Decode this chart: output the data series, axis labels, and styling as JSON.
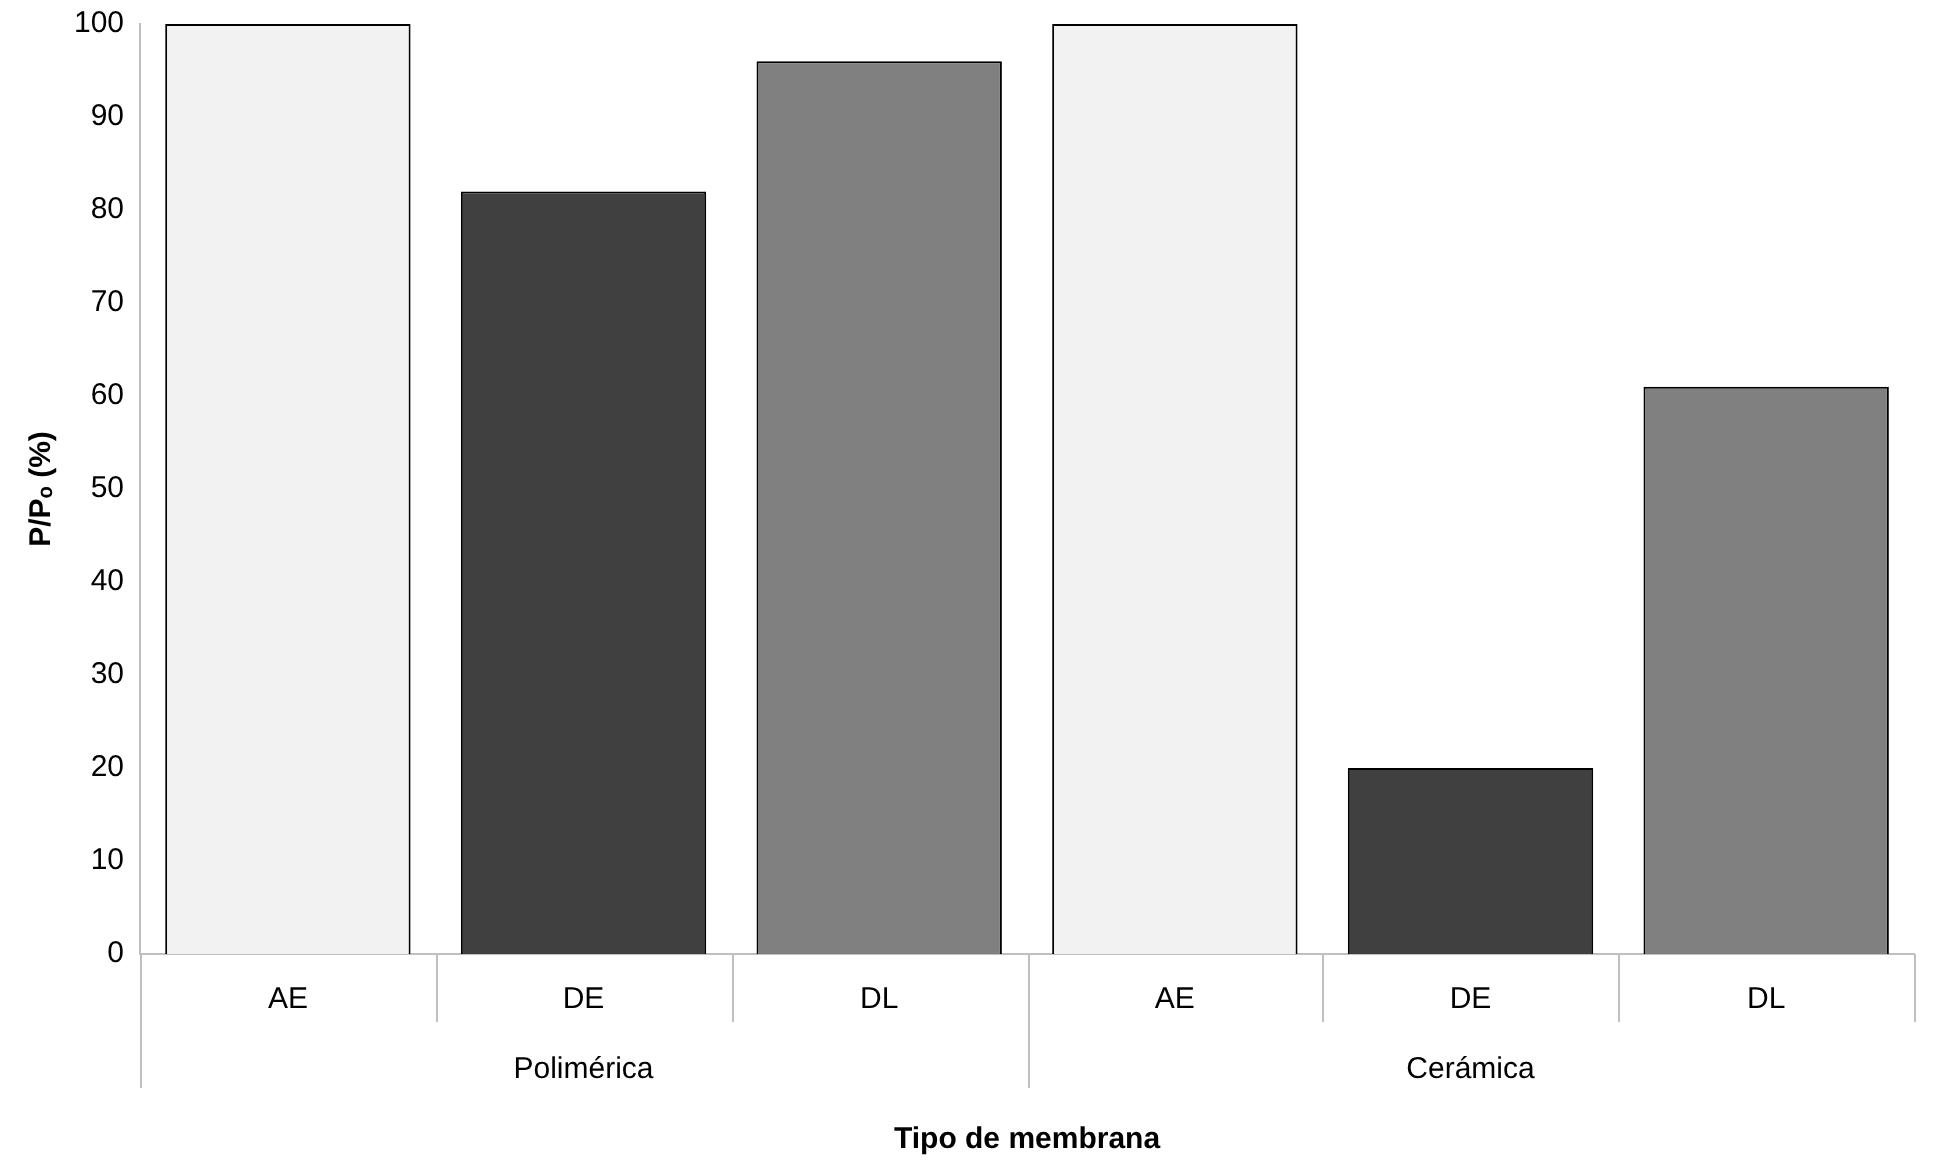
{
  "chart_data": {
    "type": "bar",
    "xlabel": "Tipo de membrana",
    "ylabel": "P/Pₒ (%)",
    "categories": [
      "AE",
      "DE",
      "DL",
      "AE",
      "DE",
      "DL"
    ],
    "values": [
      100,
      82,
      96,
      100,
      20,
      61
    ],
    "colors": [
      "#f2f2f2",
      "#404040",
      "#808080",
      "#f2f2f2",
      "#404040",
      "#808080"
    ],
    "ylim": [
      0,
      100
    ],
    "yticks": [
      0,
      10,
      20,
      30,
      40,
      50,
      60,
      70,
      80,
      90,
      100
    ],
    "grid": false,
    "legend": false,
    "annotations": [
      "Polimérica",
      "Cerámica"
    ]
  }
}
